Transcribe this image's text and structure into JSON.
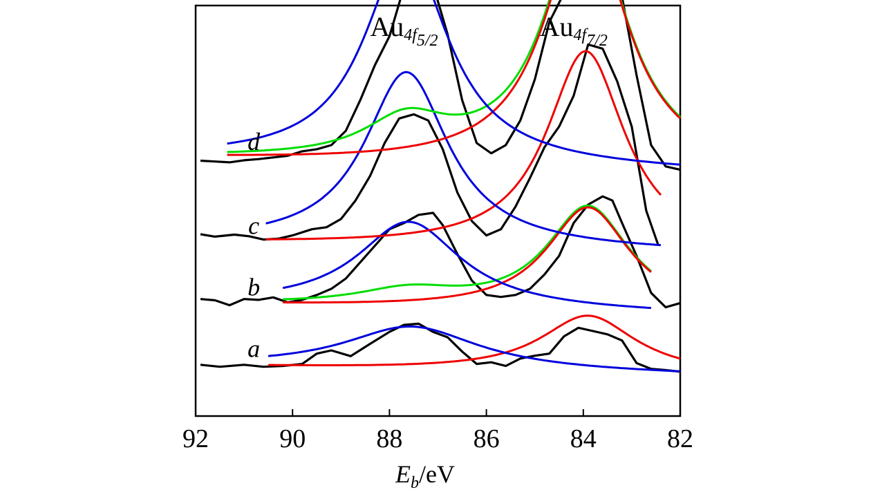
{
  "chart_data": {
    "type": "line",
    "title": "",
    "xlabel": {
      "main": "E",
      "sub": "b",
      "unit": "/eV"
    },
    "ylabel": "",
    "xlim": [
      92,
      82
    ],
    "x_ticks": [
      92,
      90,
      88,
      86,
      84,
      82
    ],
    "x_tick_labels": [
      "92",
      "90",
      "88",
      "86",
      "84",
      "82"
    ],
    "peak_labels": [
      {
        "main": "Au",
        "sub": "4f",
        "subsub": "5/2",
        "x": 87.7
      },
      {
        "main": "Au",
        "sub": "4f",
        "subsub": "7/2",
        "x": 84.2
      }
    ],
    "colors": {
      "measured": "#000000",
      "fit_4f52": "#0000dd",
      "fit_4f72": "#ee0000",
      "fit_sum": "#00dd00"
    },
    "spectra": [
      {
        "label": "a",
        "offset": 0.12,
        "label_x": 90.8,
        "fit_range": [
          90.5,
          82
        ],
        "baseline": [
          0.12,
          0.1
        ],
        "peaks": [
          {
            "center": 87.55,
            "amp": 0.105,
            "width": 1.7
          },
          {
            "center": 83.9,
            "amp": 0.14,
            "width": 1.2
          }
        ],
        "green": false,
        "measured": [
          [
            91.9,
            0.125
          ],
          [
            91.5,
            0.12
          ],
          [
            91.0,
            0.125
          ],
          [
            90.6,
            0.12
          ],
          [
            90.2,
            0.122
          ],
          [
            89.8,
            0.127
          ],
          [
            89.5,
            0.152
          ],
          [
            89.2,
            0.16
          ],
          [
            88.8,
            0.146
          ],
          [
            88.4,
            0.176
          ],
          [
            88.0,
            0.205
          ],
          [
            87.7,
            0.222
          ],
          [
            87.4,
            0.225
          ],
          [
            87.1,
            0.205
          ],
          [
            86.8,
            0.192
          ],
          [
            86.5,
            0.157
          ],
          [
            86.2,
            0.127
          ],
          [
            85.9,
            0.131
          ],
          [
            85.6,
            0.122
          ],
          [
            85.3,
            0.14
          ],
          [
            85.0,
            0.147
          ],
          [
            84.7,
            0.152
          ],
          [
            84.4,
            0.194
          ],
          [
            84.1,
            0.215
          ],
          [
            83.8,
            0.207
          ],
          [
            83.5,
            0.199
          ],
          [
            83.2,
            0.184
          ],
          [
            82.9,
            0.129
          ],
          [
            82.6,
            0.115
          ],
          [
            82.3,
            0.112
          ],
          [
            82.0,
            0.108
          ]
        ]
      },
      {
        "label": "b",
        "offset": 0.27,
        "label_x": 90.8,
        "fit_range": [
          90.2,
          82.6
        ],
        "baseline": [
          0.27,
          0.25
        ],
        "peaks": [
          {
            "center": 87.6,
            "amp": 0.21,
            "width": 1.3
          },
          {
            "center": 83.9,
            "amp": 0.255,
            "width": 1.05
          }
        ],
        "green": true,
        "measured": [
          [
            91.9,
            0.285
          ],
          [
            91.6,
            0.282
          ],
          [
            91.3,
            0.27
          ],
          [
            91.0,
            0.285
          ],
          [
            90.7,
            0.283
          ],
          [
            90.4,
            0.289
          ],
          [
            90.1,
            0.277
          ],
          [
            89.8,
            0.283
          ],
          [
            89.5,
            0.295
          ],
          [
            89.2,
            0.31
          ],
          [
            88.9,
            0.335
          ],
          [
            88.6,
            0.375
          ],
          [
            88.3,
            0.415
          ],
          [
            88.0,
            0.455
          ],
          [
            87.7,
            0.47
          ],
          [
            87.4,
            0.49
          ],
          [
            87.1,
            0.495
          ],
          [
            86.9,
            0.465
          ],
          [
            86.6,
            0.395
          ],
          [
            86.3,
            0.33
          ],
          [
            86.0,
            0.295
          ],
          [
            85.7,
            0.29
          ],
          [
            85.4,
            0.295
          ],
          [
            85.1,
            0.31
          ],
          [
            84.8,
            0.345
          ],
          [
            84.5,
            0.39
          ],
          [
            84.2,
            0.47
          ],
          [
            83.9,
            0.515
          ],
          [
            83.6,
            0.535
          ],
          [
            83.4,
            0.525
          ],
          [
            83.2,
            0.47
          ],
          [
            82.9,
            0.39
          ],
          [
            82.6,
            0.3
          ],
          [
            82.3,
            0.265
          ],
          [
            82.0,
            0.275
          ]
        ]
      },
      {
        "label": "c",
        "offset": 0.42,
        "label_x": 90.8,
        "fit_range": [
          90.55,
          82.4
        ],
        "baseline": [
          0.42,
          0.4
        ],
        "peaks": [
          {
            "center": 87.65,
            "amp": 0.425,
            "width": 1.05
          },
          {
            "center": 83.95,
            "amp": 0.485,
            "width": 0.98
          }
        ],
        "green": false,
        "measured": [
          [
            91.9,
            0.443
          ],
          [
            91.6,
            0.437
          ],
          [
            91.2,
            0.442
          ],
          [
            90.9,
            0.438
          ],
          [
            90.6,
            0.43
          ],
          [
            90.3,
            0.432
          ],
          [
            90.0,
            0.44
          ],
          [
            89.6,
            0.455
          ],
          [
            89.3,
            0.46
          ],
          [
            89.0,
            0.48
          ],
          [
            88.7,
            0.525
          ],
          [
            88.4,
            0.585
          ],
          [
            88.1,
            0.665
          ],
          [
            87.8,
            0.725
          ],
          [
            87.5,
            0.735
          ],
          [
            87.2,
            0.72
          ],
          [
            86.9,
            0.65
          ],
          [
            86.6,
            0.545
          ],
          [
            86.3,
            0.475
          ],
          [
            86.0,
            0.44
          ],
          [
            85.7,
            0.455
          ],
          [
            85.4,
            0.51
          ],
          [
            85.1,
            0.58
          ],
          [
            84.8,
            0.655
          ],
          [
            84.5,
            0.705
          ],
          [
            84.2,
            0.78
          ],
          [
            83.9,
            0.905
          ],
          [
            83.6,
            0.895
          ],
          [
            83.3,
            0.815
          ],
          [
            83.0,
            0.705
          ],
          [
            82.7,
            0.5
          ],
          [
            82.45,
            0.415
          ]
        ]
      },
      {
        "label": "d",
        "offset": 0.625,
        "label_x": 90.8,
        "fit_range": [
          91.35,
          82.0
        ],
        "baseline": [
          0.625,
          0.595
        ],
        "peaks": [
          {
            "center": 87.65,
            "amp": 0.52,
            "width": 1.05
          },
          {
            "center": 83.95,
            "amp": 0.625,
            "width": 1.0
          }
        ],
        "green": true,
        "measured": [
          [
            91.9,
            0.622
          ],
          [
            91.6,
            0.62
          ],
          [
            91.3,
            0.618
          ],
          [
            91.0,
            0.623
          ],
          [
            90.7,
            0.626
          ],
          [
            90.4,
            0.63
          ],
          [
            90.1,
            0.634
          ],
          [
            89.8,
            0.645
          ],
          [
            89.5,
            0.65
          ],
          [
            89.2,
            0.66
          ],
          [
            88.9,
            0.695
          ],
          [
            88.6,
            0.77
          ],
          [
            88.3,
            0.855
          ],
          [
            88.0,
            0.925
          ],
          [
            87.7,
            1.045
          ],
          [
            87.4,
            1.1
          ],
          [
            87.1,
            1.05
          ],
          [
            86.8,
            0.93
          ],
          [
            86.5,
            0.77
          ],
          [
            86.2,
            0.665
          ],
          [
            85.9,
            0.64
          ],
          [
            85.6,
            0.66
          ],
          [
            85.3,
            0.72
          ],
          [
            85.0,
            0.82
          ],
          [
            84.7,
            0.96
          ],
          [
            84.4,
            1.03
          ],
          [
            84.1,
            1.08
          ],
          [
            83.8,
            1.1
          ],
          [
            83.5,
            1.16
          ],
          [
            83.2,
            1.02
          ],
          [
            82.9,
            0.83
          ],
          [
            82.6,
            0.66
          ],
          [
            82.3,
            0.608
          ],
          [
            82.0,
            0.6
          ]
        ]
      }
    ]
  }
}
